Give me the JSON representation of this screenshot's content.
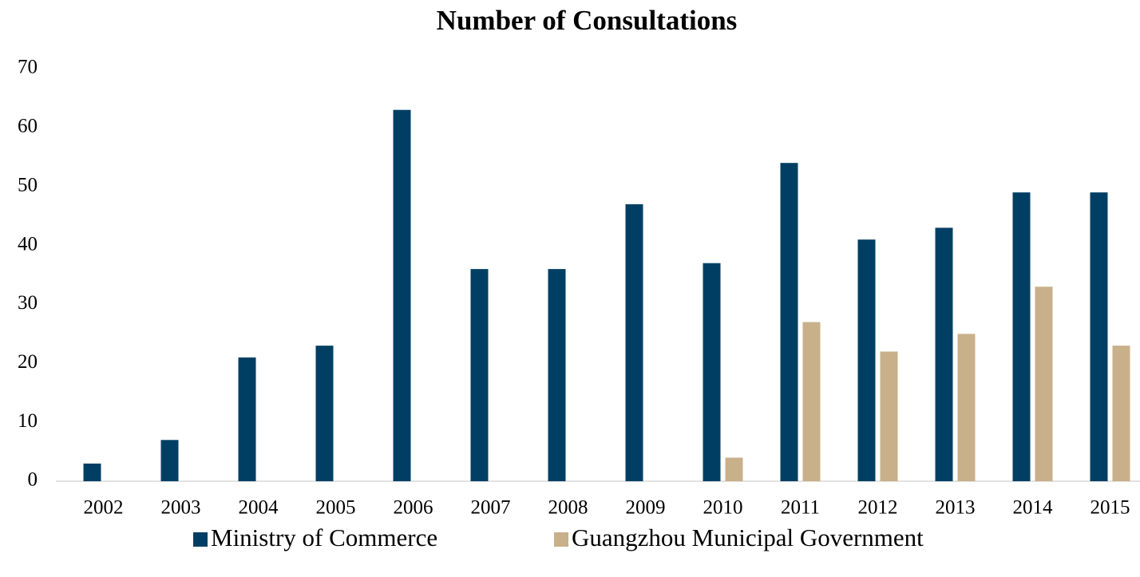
{
  "chart_data": {
    "type": "bar",
    "title": "Number of Consultations",
    "categories": [
      "2002",
      "2003",
      "2004",
      "2005",
      "2006",
      "2007",
      "2008",
      "2009",
      "2010",
      "2011",
      "2012",
      "2013",
      "2014",
      "2015"
    ],
    "series": [
      {
        "name": "Ministry of Commerce",
        "color": "#003f63",
        "values": [
          3,
          7,
          21,
          23,
          63,
          36,
          36,
          47,
          37,
          54,
          41,
          43,
          49,
          49
        ]
      },
      {
        "name": "Guangzhou Municipal Government",
        "color": "#c8b08a",
        "values": [
          null,
          null,
          null,
          null,
          null,
          null,
          null,
          null,
          4,
          27,
          22,
          25,
          33,
          23
        ]
      }
    ],
    "ylim": [
      0,
      70
    ],
    "yticks": [
      0,
      10,
      20,
      30,
      40,
      50,
      60,
      70
    ],
    "grid": false,
    "legend": "bottom"
  }
}
